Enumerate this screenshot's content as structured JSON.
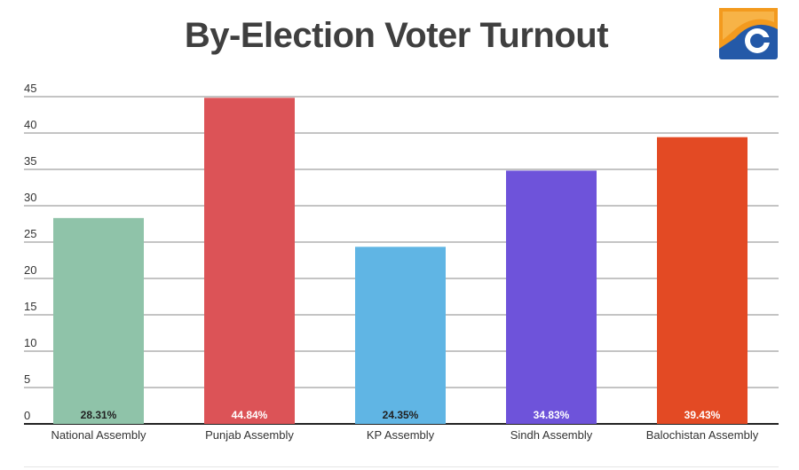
{
  "chart_data": {
    "type": "bar",
    "title": "By-Election Voter Turnout",
    "categories": [
      "National Assembly",
      "Punjab Assembly",
      "KP Assembly",
      "Sindh Assembly",
      "Balochistan Assembly"
    ],
    "values": [
      28.31,
      44.84,
      24.35,
      34.83,
      39.43
    ],
    "data_labels": [
      "28.31%",
      "44.84%",
      "24.35%",
      "34.83%",
      "39.43%"
    ],
    "colors": [
      "#8fc3a9",
      "#dc5357",
      "#60b5e4",
      "#6e53da",
      "#e34a24"
    ],
    "label_colors": [
      "#222222",
      "#ffffff",
      "#222222",
      "#ffffff",
      "#ffffff"
    ],
    "ylim": [
      0,
      45
    ],
    "yticks": [
      "0",
      "5",
      "10",
      "15",
      "20",
      "25",
      "30",
      "35",
      "40",
      "45"
    ],
    "grid": true,
    "legend": "none"
  },
  "brand": {
    "logo": "geo-news-logo",
    "logo_colors": [
      "#f39a1e",
      "#2459a8"
    ]
  }
}
